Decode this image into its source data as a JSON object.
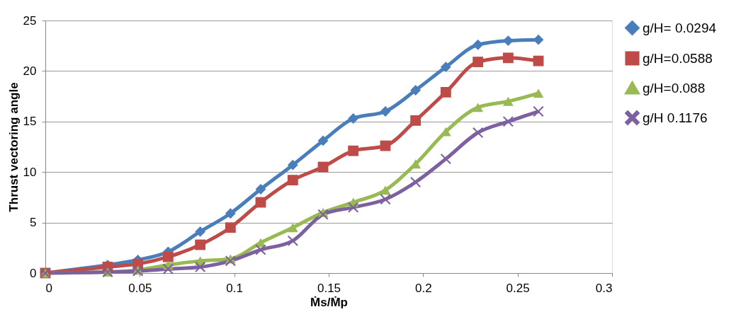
{
  "chart_data": {
    "type": "line",
    "xlabel": "Ṁs/Ṁp",
    "ylabel": "Thrust vectoring angle",
    "x": [
      0,
      0.033,
      0.049,
      0.065,
      0.082,
      0.098,
      0.114,
      0.131,
      0.147,
      0.163,
      0.18,
      0.196,
      0.212,
      0.229,
      0.245,
      0.261
    ],
    "series": [
      {
        "name": "g/H= 0.0294",
        "color": "#4a7ebb",
        "marker": "diamond",
        "values": [
          0,
          0.8,
          1.3,
          2.1,
          4.1,
          5.9,
          8.3,
          10.7,
          13.1,
          15.3,
          16.0,
          18.1,
          20.4,
          22.6,
          23.0,
          23.1
        ]
      },
      {
        "name": "g/H=0.0588",
        "color": "#be4b48",
        "marker": "square",
        "values": [
          0,
          0.6,
          0.9,
          1.6,
          2.8,
          4.5,
          7.0,
          9.2,
          10.5,
          12.1,
          12.6,
          15.1,
          17.9,
          20.9,
          21.3,
          21.0
        ]
      },
      {
        "name": "g/H=0.088",
        "color": "#98b954",
        "marker": "triangle",
        "values": [
          0,
          0.1,
          0.3,
          0.8,
          1.2,
          1.4,
          3.0,
          4.5,
          6.0,
          7.0,
          8.2,
          10.8,
          14.0,
          16.4,
          17.0,
          17.8
        ]
      },
      {
        "name": "g/H 0.1176",
        "color": "#7d60a0",
        "marker": "cross",
        "values": [
          0,
          0.1,
          0.2,
          0.4,
          0.6,
          1.2,
          2.3,
          3.2,
          5.8,
          6.5,
          7.3,
          9.0,
          11.3,
          13.9,
          15.0,
          16.0
        ]
      }
    ],
    "xlim": [
      0,
      0.3
    ],
    "xticks": [
      0,
      0.05,
      0.1,
      0.15,
      0.2,
      0.25,
      0.3
    ],
    "ylim": [
      0,
      25
    ],
    "yticks": [
      0,
      5,
      10,
      15,
      20,
      25
    ],
    "grid": "y",
    "legend": "right",
    "line_style": "solid"
  }
}
